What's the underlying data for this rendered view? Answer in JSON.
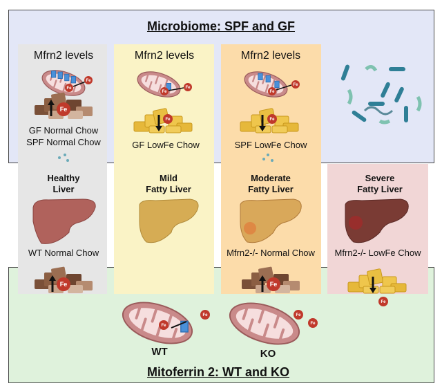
{
  "top_section": {
    "title": "Microbiome: SPF and GF",
    "color": "#e3e7f7"
  },
  "bottom_section": {
    "title": "Mitoferrin 2: WT and KO",
    "color": "#dff2dc"
  },
  "fe_label": "Fe",
  "columns": [
    {
      "color": "#e6e6e6",
      "header": "Mfrn2 levels",
      "diet_line1": "GF Normal Chow",
      "diet_line2": "SPF Normal Chow",
      "liver_line1": "Healthy",
      "liver_line2": "Liver",
      "genotype": "WT Normal Chow"
    },
    {
      "color": "#faf3c6",
      "header": "Mfrn2 levels",
      "diet_line1": "GF LowFe Chow",
      "liver_line1": "Mild",
      "liver_line2": "Fatty Liver"
    },
    {
      "color": "#fcdcaa",
      "header": "Mfrn2 levels",
      "diet_line1": "SPF LowFe Chow",
      "liver_line1": "Moderate",
      "liver_line2": "Fatty Liver",
      "genotype": "Mfrn2-/- Normal Chow"
    },
    {
      "color": "#f1d6d6",
      "liver_line1": "Severe",
      "liver_line2": "Fatty Liver",
      "genotype": "Mfrn2-/- LowFe Chow"
    }
  ],
  "mito_labels": {
    "wt": "WT",
    "ko": "KO"
  },
  "icons": [
    "mitochondrion-icon",
    "iron-icon",
    "chow-pile-icon",
    "arrow-up-icon",
    "arrow-down-icon",
    "liver-icon",
    "bacteria-icon"
  ]
}
